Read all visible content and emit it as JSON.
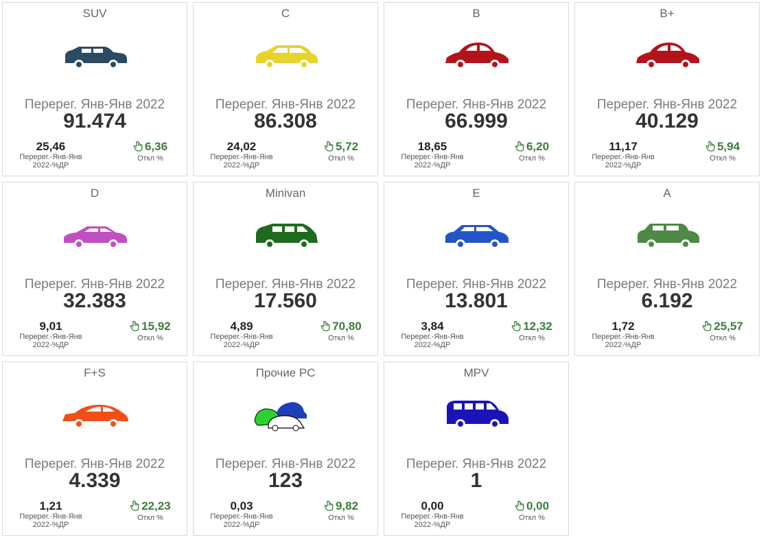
{
  "cards": [
    {
      "category": "SUV",
      "color": "#2b4a63",
      "icon": "suv-icon",
      "metric_label": "Перерег. Янв-Янв 2022",
      "value": "91.474",
      "share": "25,46",
      "share_label": "Перерег.-Янв-Янв 2022-%ДР",
      "deviation": "6,36",
      "deviation_label": "Откл %"
    },
    {
      "category": "C",
      "color": "#e6d42a",
      "icon": "hatchback-outline-icon",
      "metric_label": "Перерег. Янв-Янв 2022",
      "value": "86.308",
      "share": "24,02",
      "share_label": "Перерег.-Янв-Янв 2022-%ДР",
      "deviation": "5,72",
      "deviation_label": "Откл %"
    },
    {
      "category": "B",
      "color": "#b3141c",
      "icon": "beetle-car-icon",
      "metric_label": "Перерег. Янв-Янв 2022",
      "value": "66.999",
      "share": "18,65",
      "share_label": "Перерег.-Янв-Янв 2022-%ДР",
      "deviation": "6,20",
      "deviation_label": "Откл %"
    },
    {
      "category": "B+",
      "color": "#b3141c",
      "icon": "beetle-car-icon",
      "metric_label": "Перерег. Янв-Янв 2022",
      "value": "40.129",
      "share": "11,17",
      "share_label": "Перерег.-Янв-Янв 2022-%ДР",
      "deviation": "5,94",
      "deviation_label": "Откл %"
    },
    {
      "category": "D",
      "color": "#c04fc4",
      "icon": "sedan-icon",
      "metric_label": "Перерег. Янв-Янв 2022",
      "value": "32.383",
      "share": "9,01",
      "share_label": "Перерег.-Янв-Янв 2022-%ДР",
      "deviation": "15,92",
      "deviation_label": "Откл %"
    },
    {
      "category": "Minivan",
      "color": "#1e6b1e",
      "icon": "minivan-icon",
      "metric_label": "Перерег. Янв-Янв 2022",
      "value": "17.560",
      "share": "4,89",
      "share_label": "Перерег.-Янв-Янв 2022-%ДР",
      "deviation": "70,80",
      "deviation_label": "Откл %"
    },
    {
      "category": "E",
      "color": "#2355c9",
      "icon": "wagon-icon",
      "metric_label": "Перерег. Янв-Янв 2022",
      "value": "13.801",
      "share": "3,84",
      "share_label": "Перерег.-Янв-Янв 2022-%ДР",
      "deviation": "12,32",
      "deviation_label": "Откл %"
    },
    {
      "category": "A",
      "color": "#4c8a45",
      "icon": "mini-car-icon",
      "metric_label": "Перерег. Янв-Янв 2022",
      "value": "6.192",
      "share": "1,72",
      "share_label": "Перерег.-Янв-Янв 2022-%ДР",
      "deviation": "25,57",
      "deviation_label": "Откл %"
    },
    {
      "category": "F+S",
      "color": "#f05018",
      "icon": "sports-car-icon",
      "metric_label": "Перерег. Янв-Янв 2022",
      "value": "4.339",
      "share": "1,21",
      "share_label": "Перерег.-Янв-Янв 2022-%ДР",
      "deviation": "22,23",
      "deviation_label": "Откл %"
    },
    {
      "category": "Прочие РС",
      "color": "#1e3fb8",
      "icon": "multiple-cars-icon",
      "metric_label": "Перерег. Янв-Янв 2022",
      "value": "123",
      "share": "0,03",
      "share_label": "Перерег.-Янв-Янв 2022-%ДР",
      "deviation": "9,82",
      "deviation_label": "Откл %"
    },
    {
      "category": "MPV",
      "color": "#1a14b8",
      "icon": "van-icon",
      "metric_label": "Перерег. Янв-Янв 2022",
      "value": "1",
      "share": "0,00",
      "share_label": "Перерег.-Янв-Янв 2022-%ДР",
      "deviation": "0,00",
      "deviation_label": "Откл %"
    }
  ],
  "colors": {
    "positive": "#3b7d3b",
    "border": "#d9d9d9"
  }
}
